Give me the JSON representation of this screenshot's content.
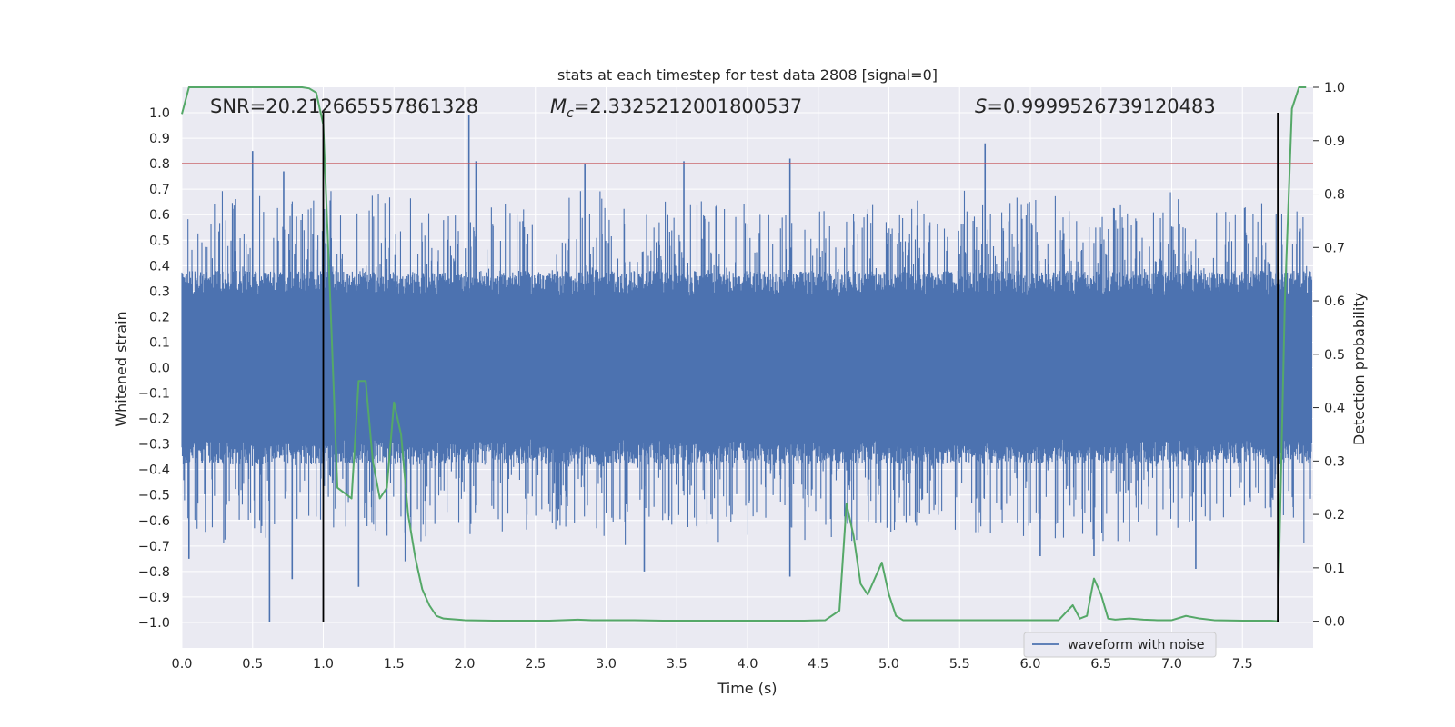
{
  "chart_data": {
    "type": "line",
    "title": "stats at each timestep for test data 2808 [signal=0]",
    "xlabel": "Time (s)",
    "ylabel": "Whitened strain",
    "ylabel_right": "Detection probability",
    "xlim": [
      0,
      8.0
    ],
    "ylim": [
      -1.1,
      1.1
    ],
    "ylim_right": [
      -0.05,
      1.0
    ],
    "x_ticks": [
      0.0,
      0.5,
      1.0,
      1.5,
      2.0,
      2.5,
      3.0,
      3.5,
      4.0,
      4.5,
      5.0,
      5.5,
      6.0,
      6.5,
      7.0,
      7.5
    ],
    "x_tick_labels": [
      "0.0",
      "0.5",
      "1.0",
      "1.5",
      "2.0",
      "2.5",
      "3.0",
      "3.5",
      "4.0",
      "4.5",
      "5.0",
      "5.5",
      "6.0",
      "6.5",
      "7.0",
      "7.5"
    ],
    "y_ticks": [
      1.0,
      0.9,
      0.8,
      0.7,
      0.6,
      0.5,
      0.4,
      0.3,
      0.2,
      0.1,
      0.0,
      -0.1,
      -0.2,
      -0.3,
      -0.4,
      -0.5,
      -0.6,
      -0.7,
      -0.8,
      -0.9,
      -1.0
    ],
    "y_tick_labels": [
      "1.0",
      "0.9",
      "0.8",
      "0.7",
      "0.6",
      "0.5",
      "0.4",
      "0.3",
      "0.2",
      "0.1",
      "0.0",
      "−0.1",
      "−0.2",
      "−0.3",
      "−0.4",
      "−0.5",
      "−0.6",
      "−0.7",
      "−0.8",
      "−0.9",
      "−1.0"
    ],
    "y_ticks_right": [
      1.0,
      0.9,
      0.8,
      0.7,
      0.6,
      0.5,
      0.4,
      0.3,
      0.2,
      0.1,
      0.0
    ],
    "y_tick_labels_right": [
      "1.0",
      "0.9",
      "0.8",
      "0.7",
      "0.6",
      "0.5",
      "0.4",
      "0.3",
      "0.2",
      "0.1",
      "0.0"
    ],
    "annotations": {
      "snr": "SNR=20.212665557861328",
      "mc_symbol": "M",
      "mc_sub": "c",
      "mc_value": "=2.3325212001800537",
      "s_symbol": "S",
      "s_value": "=0.9999526739120483"
    },
    "threshold": {
      "value": 0.8,
      "color": "#c44e52"
    },
    "vertical_lines": [
      1.0,
      7.75
    ],
    "waveform": {
      "name": "waveform with noise",
      "color": "#4c72b0",
      "peaks": [
        {
          "x": 0.05,
          "y": -0.75
        },
        {
          "x": 0.5,
          "y": 0.85
        },
        {
          "x": 0.62,
          "y": -1.0
        },
        {
          "x": 0.72,
          "y": 0.77
        },
        {
          "x": 0.78,
          "y": -0.83
        },
        {
          "x": 1.25,
          "y": -0.86
        },
        {
          "x": 1.58,
          "y": -0.76
        },
        {
          "x": 2.03,
          "y": 0.99
        },
        {
          "x": 2.08,
          "y": 0.81
        },
        {
          "x": 2.85,
          "y": 0.8
        },
        {
          "x": 3.27,
          "y": -0.8
        },
        {
          "x": 3.55,
          "y": 0.81
        },
        {
          "x": 4.3,
          "y": 0.82
        },
        {
          "x": 4.3,
          "y": -0.82
        },
        {
          "x": 5.68,
          "y": 0.88
        },
        {
          "x": 6.07,
          "y": -0.74
        },
        {
          "x": 6.45,
          "y": -0.74
        },
        {
          "x": 7.17,
          "y": -0.79
        }
      ]
    },
    "series": [
      {
        "name": "Detection probability",
        "axis": "right",
        "color": "#55a868",
        "x": [
          0.0,
          0.05,
          0.1,
          0.2,
          0.3,
          0.4,
          0.5,
          0.6,
          0.7,
          0.8,
          0.85,
          0.9,
          0.95,
          1.0,
          1.05,
          1.1,
          1.15,
          1.2,
          1.25,
          1.3,
          1.35,
          1.4,
          1.45,
          1.5,
          1.55,
          1.6,
          1.65,
          1.7,
          1.75,
          1.8,
          1.85,
          2.0,
          2.2,
          2.4,
          2.6,
          2.8,
          2.9,
          3.0,
          3.2,
          3.4,
          3.6,
          3.8,
          4.0,
          4.2,
          4.4,
          4.55,
          4.65,
          4.7,
          4.75,
          4.8,
          4.85,
          4.9,
          4.95,
          5.0,
          5.05,
          5.1,
          5.2,
          5.4,
          5.6,
          5.8,
          6.0,
          6.2,
          6.3,
          6.35,
          6.4,
          6.45,
          6.5,
          6.55,
          6.6,
          6.7,
          6.8,
          6.9,
          7.0,
          7.1,
          7.2,
          7.3,
          7.5,
          7.7,
          7.75,
          7.8,
          7.85,
          7.9,
          7.95
        ],
        "values": [
          0.95,
          1.0,
          1.0,
          1.0,
          1.0,
          1.0,
          1.0,
          1.0,
          1.0,
          1.0,
          1.0,
          0.998,
          0.99,
          0.93,
          0.6,
          0.25,
          0.24,
          0.23,
          0.45,
          0.45,
          0.3,
          0.23,
          0.25,
          0.41,
          0.35,
          0.2,
          0.12,
          0.06,
          0.03,
          0.01,
          0.005,
          0.002,
          0.001,
          0.001,
          0.001,
          0.003,
          0.002,
          0.002,
          0.002,
          0.001,
          0.001,
          0.001,
          0.001,
          0.001,
          0.001,
          0.002,
          0.02,
          0.22,
          0.16,
          0.07,
          0.05,
          0.08,
          0.11,
          0.05,
          0.01,
          0.002,
          0.002,
          0.002,
          0.002,
          0.002,
          0.002,
          0.002,
          0.03,
          0.005,
          0.01,
          0.08,
          0.05,
          0.005,
          0.003,
          0.005,
          0.003,
          0.002,
          0.002,
          0.01,
          0.005,
          0.002,
          0.001,
          0.001,
          0.0,
          0.6,
          0.96,
          1.0,
          1.0
        ]
      }
    ],
    "legend": {
      "label": "waveform with noise",
      "position": "lower-right"
    },
    "grid": true
  }
}
